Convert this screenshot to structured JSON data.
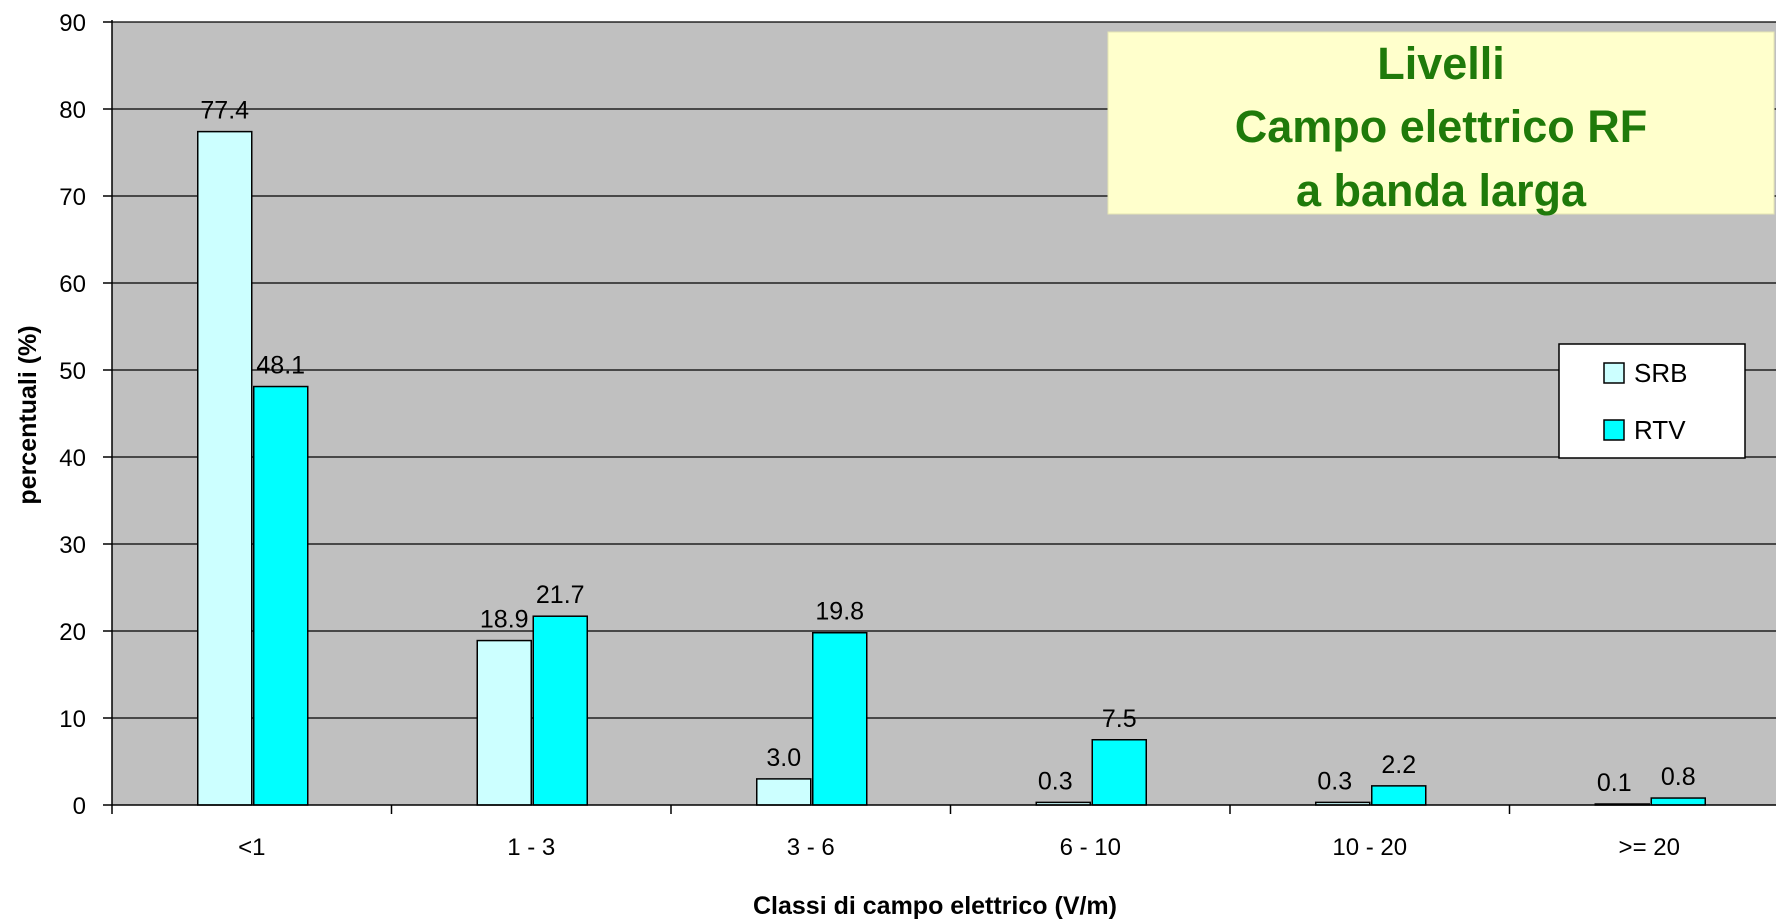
{
  "chart_data": {
    "type": "bar",
    "title_lines": [
      "Livelli",
      "Campo elettrico RF",
      "a banda larga"
    ],
    "xlabel": "Classi di campo elettrico (V/m)",
    "ylabel": "percentuali (%)",
    "ylim": [
      0,
      90
    ],
    "yticks": [
      0,
      10,
      20,
      30,
      40,
      50,
      60,
      70,
      80,
      90
    ],
    "grid": true,
    "legend_position": "right",
    "categories": [
      "<1",
      "1 - 3",
      "3 - 6",
      "6 - 10",
      "10 - 20",
      ">= 20"
    ],
    "series": [
      {
        "name": "SRB",
        "color": "#ccffff",
        "values": [
          77.4,
          18.9,
          3.0,
          0.3,
          0.3,
          0.1
        ],
        "labels": [
          "77.4",
          "18.9",
          "3.0",
          "0.3",
          "0.3",
          "0.1"
        ]
      },
      {
        "name": "RTV",
        "color": "#00ffff",
        "values": [
          48.1,
          21.7,
          19.8,
          7.5,
          2.2,
          0.8
        ],
        "labels": [
          "48.1",
          "21.7",
          "19.8",
          "7.5",
          "2.2",
          "0.8"
        ]
      }
    ],
    "colors": {
      "plot_background": "#c0c0c0",
      "title_box": "#ffffcc",
      "title_text": "#1f7a0a"
    }
  }
}
